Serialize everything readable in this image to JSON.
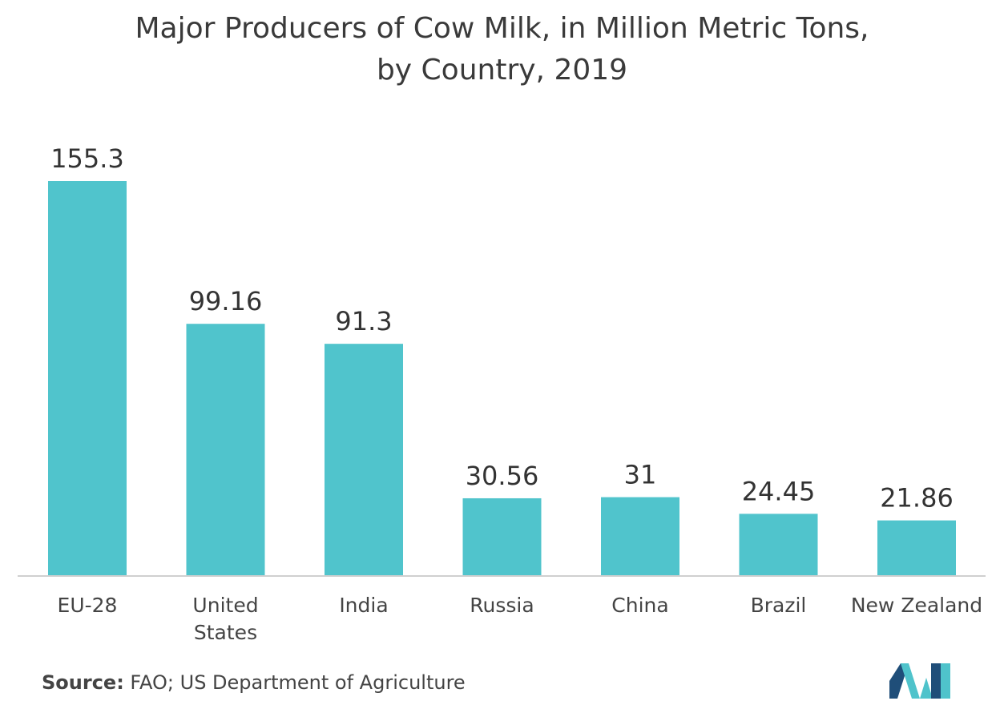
{
  "title": {
    "line1": "Major Producers of Cow Milk, in Million Metric Tons,",
    "line2": "by Country, 2019"
  },
  "chart_data": {
    "type": "bar",
    "title": "Major Producers of Cow Milk, in Million Metric Tons, by Country, 2019",
    "categories": [
      "EU-28",
      "United States",
      "India",
      "Russia",
      "China",
      "Brazil",
      "New Zealand"
    ],
    "category_lines": [
      [
        "EU-28"
      ],
      [
        "United",
        "States"
      ],
      [
        "India"
      ],
      [
        "Russia"
      ],
      [
        "China"
      ],
      [
        "Brazil"
      ],
      [
        "New Zealand"
      ]
    ],
    "values": [
      155.3,
      99.16,
      91.3,
      30.56,
      31,
      24.45,
      21.86
    ],
    "value_labels": [
      "155.3",
      "99.16",
      "91.3",
      "30.56",
      "31",
      "24.45",
      "21.86"
    ],
    "xlabel": "",
    "ylabel": "",
    "ylim": [
      0,
      155.3
    ],
    "grid": false,
    "bar_color": "#50c4cc"
  },
  "source": {
    "label": "Source:",
    "text": " FAO; US Department of Agriculture"
  },
  "colors": {
    "bar": "#50c4cc",
    "axis": "#d0d0d0",
    "logo_dark": "#1f4e79",
    "logo_light": "#4fc3cb"
  }
}
